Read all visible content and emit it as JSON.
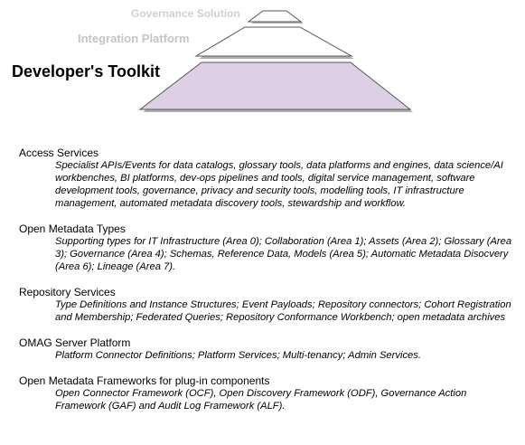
{
  "pyramid": {
    "top_label": "Governance Solution",
    "middle_label": "Integration Platform",
    "bottom_label": "Developer's Toolkit",
    "colors": {
      "top_fill": "#ffffff",
      "middle_fill": "#ffffff",
      "bottom_fill": "#ddd0e4",
      "outline": "#555555",
      "shadow": "#b0b0b0"
    }
  },
  "sections": [
    {
      "title": "Access Services",
      "description": "Specialist APIs/Events for data catalogs, glossary tools, data platforms and engines, data science/AI workbenches, BI platforms, dev-ops pipelines and tools, digital service management, software development tools, governance, privacy and security tools, modelling tools, IT infrastructure management, automated metadata discovery tools, stewardship and workflow."
    },
    {
      "title": "Open Metadata Types",
      "description": "Supporting types for IT Infrastructure (Area 0); Collaboration (Area 1); Assets (Area 2); Glossary (Area 3); Governance (Area 4); Schemas, Reference Data, Models (Area 5); Automatic Metadata Disocvery (Area 6); Lineage (Area 7)."
    },
    {
      "title": "Repository Services",
      "description": "Type Definitions and Instance Structures; Event Payloads; Repository connectors; Cohort Registration and Membership; Federated Queries; Repository Conformance Workbench; open metadata archives"
    },
    {
      "title": "OMAG Server Platform",
      "description": "Platform Connector Definitions; Platform Services; Multi-tenancy; Admin Services."
    },
    {
      "title": "Open Metadata Frameworks for plug-in components",
      "description": "Open Connector Framework (OCF), Open Discovery Framework (ODF), Governance Action Framework (GAF) and Audit Log Framework (ALF)."
    }
  ]
}
